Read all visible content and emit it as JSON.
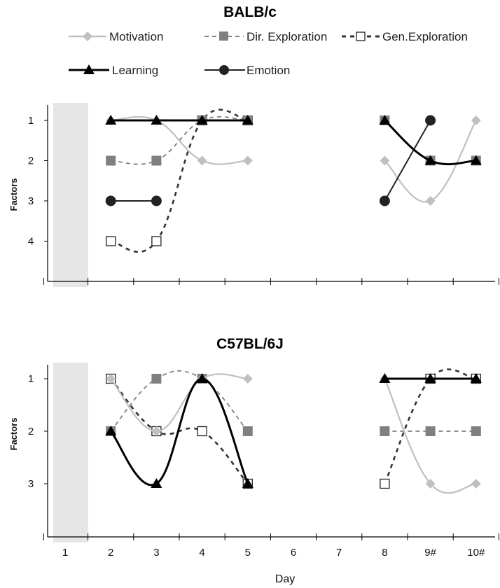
{
  "chart_data": {
    "type": "line",
    "x_categories": [
      "1",
      "2",
      "3",
      "4",
      "5",
      "6",
      "7",
      "8",
      "9#",
      "10#"
    ],
    "xlabel": "Day",
    "ylabel": "Factors",
    "y_reversed": true,
    "shaded_category": "1",
    "legend": [
      "Motivation",
      "Dir. Exploration",
      "Gen.Exploration",
      "Learning",
      "Emotion"
    ],
    "colors": {
      "motivation": "#c0c0c0",
      "dir_exploration": "#808080",
      "gen_exploration": "#333333",
      "learning": "#000000",
      "emotion": "#222222",
      "shade": "#e6e6e6"
    },
    "panels": [
      {
        "title": "BALB/c",
        "ylim": [
          1,
          4
        ],
        "yticks": [
          "1",
          "2",
          "3",
          "4"
        ],
        "series": [
          {
            "name": "Motivation",
            "x": [
              "2",
              "3",
              "4",
              "5",
              "8",
              "9#",
              "10#"
            ],
            "y": [
              1,
              1,
              2,
              2,
              2,
              3,
              1
            ]
          },
          {
            "name": "Dir. Exploration",
            "x": [
              "2",
              "3",
              "4",
              "5",
              "8",
              "9#",
              "10#"
            ],
            "y": [
              2,
              2,
              1,
              1,
              1,
              2,
              2
            ]
          },
          {
            "name": "Gen.Exploration",
            "x": [
              "2",
              "3",
              "4",
              "5"
            ],
            "y": [
              4,
              4,
              1,
              1
            ]
          },
          {
            "name": "Learning",
            "x": [
              "2",
              "3",
              "4",
              "5",
              "8",
              "9#",
              "10#"
            ],
            "y": [
              1,
              1,
              1,
              1,
              1,
              2,
              2
            ]
          },
          {
            "name": "Emotion",
            "x": [
              "2",
              "3",
              "8",
              "9#"
            ],
            "y": [
              3,
              3,
              3,
              1
            ]
          }
        ]
      },
      {
        "title": "C57BL/6J",
        "ylim": [
          1,
          3
        ],
        "yticks": [
          "1",
          "2",
          "3"
        ],
        "series": [
          {
            "name": "Motivation",
            "x": [
              "2",
              "3",
              "4",
              "5",
              "8",
              "9#",
              "10#"
            ],
            "y": [
              1,
              2,
              1,
              1,
              1,
              3,
              3
            ]
          },
          {
            "name": "Dir. Exploration",
            "x": [
              "2",
              "3",
              "4",
              "5",
              "8",
              "9#",
              "10#"
            ],
            "y": [
              2,
              1,
              1,
              2,
              2,
              2,
              2
            ]
          },
          {
            "name": "Gen.Exploration",
            "x": [
              "2",
              "3",
              "4",
              "5",
              "8",
              "9#",
              "10#"
            ],
            "y": [
              1,
              2,
              2,
              3,
              3,
              1,
              1
            ]
          },
          {
            "name": "Learning",
            "x": [
              "2",
              "3",
              "4",
              "5",
              "8",
              "9#",
              "10#"
            ],
            "y": [
              2,
              3,
              1,
              3,
              1,
              1,
              1
            ]
          }
        ]
      }
    ]
  }
}
